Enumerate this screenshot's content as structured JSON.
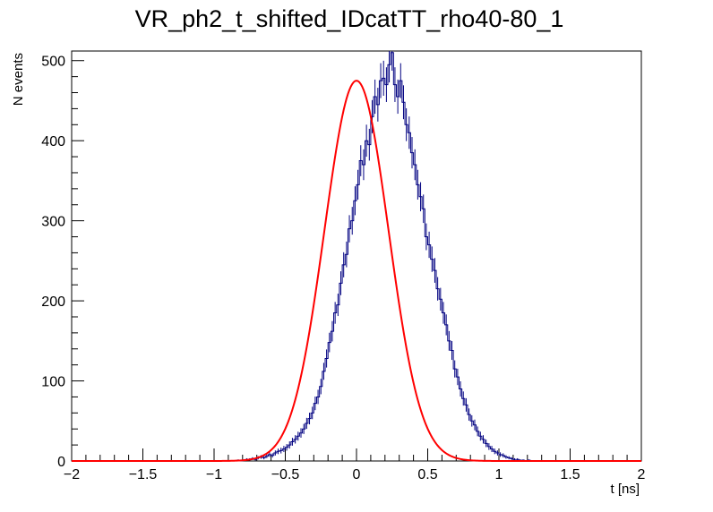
{
  "chart_data": {
    "type": "histogram",
    "title": "VR_ph2_t_shifted_IDcatTT_rho40-80_1",
    "xlabel": "t [ns]",
    "ylabel": "N events",
    "xlim": [
      -2,
      2
    ],
    "ylim": [
      0,
      512
    ],
    "x_ticks": [
      "-2",
      "-1.5",
      "-1",
      "-0.5",
      "0",
      "0.5",
      "1",
      "1.5",
      "2"
    ],
    "y_ticks": [
      "0",
      "100",
      "200",
      "300",
      "400",
      "500"
    ],
    "grid": false,
    "legend": "none",
    "series": [
      {
        "kind": "histogram",
        "color": "#000080",
        "bin_width": 0.02,
        "bins_x_start": -0.96,
        "values": [
          0,
          0,
          0,
          0,
          0,
          0,
          1,
          0,
          1,
          2,
          2,
          3,
          2,
          4,
          5,
          4,
          6,
          8,
          7,
          10,
          12,
          13,
          15,
          17,
          20,
          24,
          27,
          31,
          35,
          40,
          47,
          53,
          60,
          72,
          80,
          93,
          112,
          128,
          148,
          162,
          185,
          195,
          222,
          245,
          258,
          290,
          300,
          325,
          345,
          375,
          370,
          400,
          395,
          430,
          455,
          445,
          475,
          478,
          470,
          495,
          510,
          470,
          455,
          475,
          448,
          420,
          410,
          385,
          370,
          345,
          330,
          315,
          280,
          270,
          252,
          238,
          215,
          202,
          185,
          170,
          150,
          138,
          115,
          105,
          90,
          78,
          70,
          58,
          50,
          45,
          37,
          31,
          27,
          22,
          18,
          15,
          12,
          10,
          8,
          7,
          5,
          4,
          3,
          2,
          2,
          1,
          1,
          0,
          1,
          0
        ]
      },
      {
        "kind": "fit",
        "color": "#ff0000",
        "function": "gaus",
        "amplitude": 475,
        "mean": 0.0,
        "sigma": 0.225
      }
    ]
  }
}
